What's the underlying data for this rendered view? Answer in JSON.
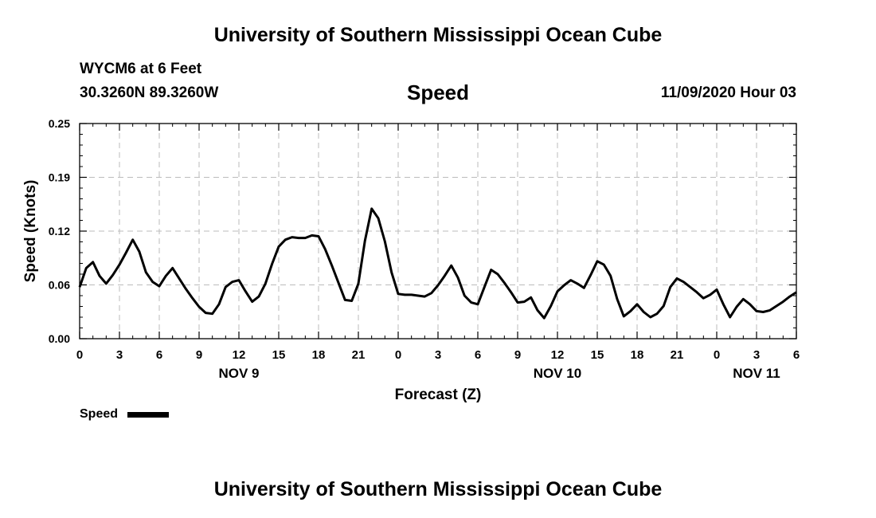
{
  "header": {
    "title": "University of Southern Mississippi Ocean Cube",
    "station": "WYCM6 at 6 Feet",
    "coords": "30.3260N 89.3260W",
    "datetime": "11/09/2020 Hour 03"
  },
  "footer": {
    "title": "University of Southern Mississippi Ocean Cube"
  },
  "chart_data": {
    "type": "line",
    "title": "Speed",
    "xlabel": "Forecast (Z)",
    "ylabel": "Speed (Knots)",
    "ylim": [
      0.0,
      0.25
    ],
    "yticks": [
      "0.00",
      "0.06",
      "0.12",
      "0.19",
      "0.25"
    ],
    "xlim": [
      0,
      54
    ],
    "x_tick_hours": [
      0,
      3,
      6,
      9,
      12,
      15,
      18,
      21,
      24,
      27,
      30,
      33,
      36,
      39,
      42,
      45,
      48,
      51,
      54
    ],
    "x_tick_labels": [
      "0",
      "3",
      "6",
      "9",
      "12",
      "15",
      "18",
      "21",
      "0",
      "3",
      "6",
      "9",
      "12",
      "15",
      "18",
      "21",
      "0",
      "3",
      "6"
    ],
    "date_labels": [
      {
        "text": "NOV 9",
        "hour": 12
      },
      {
        "text": "NOV 10",
        "hour": 36
      },
      {
        "text": "NOV 11",
        "hour": 51
      }
    ],
    "grid": true,
    "legend": {
      "label": "Speed",
      "placement": "bottom-left"
    },
    "series": [
      {
        "name": "Speed",
        "color": "#000000",
        "x": [
          0,
          0.5,
          1,
          1.5,
          2,
          2.5,
          3,
          3.5,
          4,
          4.5,
          5,
          5.5,
          6,
          6.5,
          7,
          7.5,
          8,
          8.5,
          9,
          9.5,
          10,
          10.5,
          11,
          11.5,
          12,
          12.5,
          13,
          13.5,
          14,
          14.5,
          15,
          15.5,
          16,
          16.5,
          17,
          17.5,
          18,
          18.5,
          19,
          19.5,
          20,
          20.5,
          21,
          21.5,
          22,
          22.5,
          23,
          23.5,
          24,
          24.5,
          25,
          25.5,
          26,
          26.5,
          27,
          27.5,
          28,
          28.5,
          29,
          29.5,
          30,
          30.5,
          31,
          31.5,
          32,
          32.5,
          33,
          33.5,
          34,
          34.5,
          35,
          35.5,
          36,
          36.5,
          37,
          37.5,
          38,
          38.5,
          39,
          39.5,
          40,
          40.5,
          41,
          41.5,
          42,
          42.5,
          43,
          43.5,
          44,
          44.5,
          45,
          45.5,
          46,
          46.5,
          47,
          47.5,
          48,
          48.5,
          49,
          49.5,
          50,
          50.5,
          51,
          51.5,
          52,
          52.5,
          53,
          53.5,
          54
        ],
        "values": [
          0.06,
          0.082,
          0.089,
          0.073,
          0.064,
          0.074,
          0.086,
          0.1,
          0.115,
          0.101,
          0.077,
          0.066,
          0.061,
          0.073,
          0.082,
          0.07,
          0.058,
          0.047,
          0.037,
          0.03,
          0.029,
          0.04,
          0.06,
          0.066,
          0.068,
          0.055,
          0.043,
          0.049,
          0.064,
          0.087,
          0.107,
          0.115,
          0.118,
          0.117,
          0.117,
          0.12,
          0.119,
          0.104,
          0.085,
          0.065,
          0.045,
          0.044,
          0.064,
          0.114,
          0.151,
          0.14,
          0.113,
          0.077,
          0.052,
          0.051,
          0.051,
          0.05,
          0.049,
          0.053,
          0.062,
          0.073,
          0.085,
          0.071,
          0.05,
          0.042,
          0.04,
          0.06,
          0.08,
          0.075,
          0.065,
          0.054,
          0.042,
          0.043,
          0.048,
          0.033,
          0.024,
          0.038,
          0.055,
          0.062,
          0.068,
          0.064,
          0.059,
          0.074,
          0.09,
          0.086,
          0.073,
          0.046,
          0.026,
          0.032,
          0.04,
          0.031,
          0.025,
          0.029,
          0.038,
          0.06,
          0.07,
          0.066,
          0.06,
          0.054,
          0.047,
          0.051,
          0.057,
          0.04,
          0.025,
          0.037,
          0.046,
          0.04,
          0.032,
          0.031,
          0.033,
          0.038,
          0.043,
          0.049,
          0.054
        ]
      }
    ]
  }
}
